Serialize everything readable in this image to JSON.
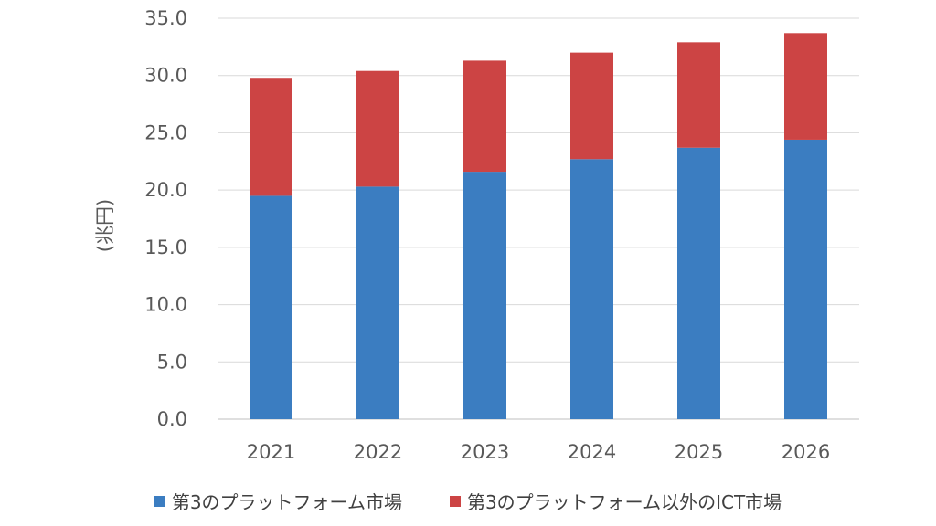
{
  "chart_data": {
    "type": "bar",
    "stacked": true,
    "ylabel": "(兆円)",
    "xlabel": "",
    "ylim": [
      0,
      35
    ],
    "yticks": [
      "0.0",
      "5.0",
      "10.0",
      "15.0",
      "20.0",
      "25.0",
      "30.0",
      "35.0"
    ],
    "categories": [
      "2021",
      "2022",
      "2023",
      "2024",
      "2025",
      "2026"
    ],
    "series": [
      {
        "name": "第3のプラットフォーム市場",
        "color": "#3B7DC1",
        "values": [
          19.5,
          20.3,
          21.6,
          22.7,
          23.7,
          24.4
        ]
      },
      {
        "name": "第3のプラットフォーム以外のICT市場",
        "color": "#CC4444",
        "values": [
          10.3,
          10.1,
          9.7,
          9.3,
          9.2,
          9.3
        ]
      }
    ],
    "grid": true,
    "legend_position": "bottom"
  }
}
